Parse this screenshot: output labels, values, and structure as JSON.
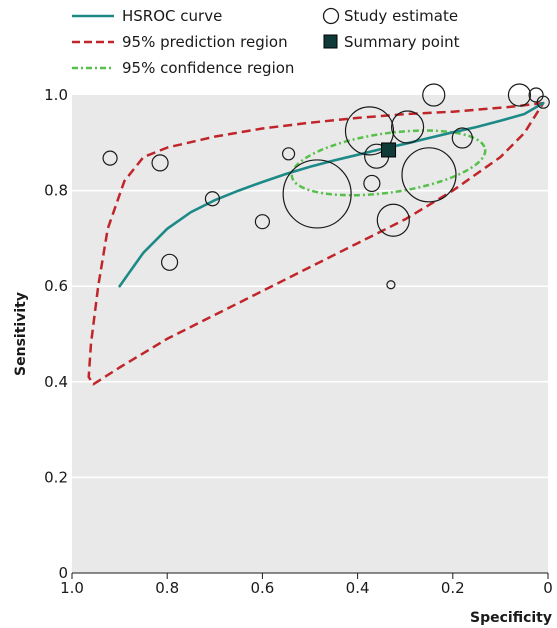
{
  "chart_data": {
    "type": "scatter",
    "xlabel": "Specificity",
    "ylabel": "Sensitivity",
    "xlim": [
      1.0,
      0.0
    ],
    "ylim": [
      0.0,
      1.0
    ],
    "x_reversed": true,
    "x_ticks": [
      {
        "value": 1.0,
        "label": "1.0"
      },
      {
        "value": 0.8,
        "label": "0.8"
      },
      {
        "value": 0.6,
        "label": "0.6"
      },
      {
        "value": 0.4,
        "label": "0.4"
      },
      {
        "value": 0.2,
        "label": "0.2"
      },
      {
        "value": 0.0,
        "label": "0"
      }
    ],
    "y_ticks": [
      {
        "value": 0.0,
        "label": "0"
      },
      {
        "value": 0.2,
        "label": "0.2"
      },
      {
        "value": 0.4,
        "label": "0.4"
      },
      {
        "value": 0.6,
        "label": "0.6"
      },
      {
        "value": 0.8,
        "label": "0.8"
      },
      {
        "value": 1.0,
        "label": "1.0"
      }
    ],
    "grid": "horizontal",
    "legend": {
      "placement": "top",
      "entries": [
        {
          "label": "HSROC curve",
          "symbol": "line"
        },
        {
          "label": "Study estimate",
          "symbol": "circle"
        },
        {
          "label": "95% prediction region",
          "symbol": "dashed"
        },
        {
          "label": "Summary point",
          "symbol": "square"
        },
        {
          "label": "95% confidence region",
          "symbol": "dotdash"
        }
      ]
    },
    "summary_point": {
      "specificity": 0.335,
      "sensitivity": 0.885
    },
    "studies": [
      {
        "specificity": 0.92,
        "sensitivity": 0.868,
        "size": 7
      },
      {
        "specificity": 0.815,
        "sensitivity": 0.858,
        "size": 8
      },
      {
        "specificity": 0.795,
        "sensitivity": 0.65,
        "size": 8
      },
      {
        "specificity": 0.705,
        "sensitivity": 0.783,
        "size": 7
      },
      {
        "specificity": 0.6,
        "sensitivity": 0.735,
        "size": 7
      },
      {
        "specificity": 0.545,
        "sensitivity": 0.877,
        "size": 6
      },
      {
        "specificity": 0.485,
        "sensitivity": 0.793,
        "size": 34
      },
      {
        "specificity": 0.375,
        "sensitivity": 0.925,
        "size": 24
      },
      {
        "specificity": 0.37,
        "sensitivity": 0.815,
        "size": 8
      },
      {
        "specificity": 0.36,
        "sensitivity": 0.872,
        "size": 12
      },
      {
        "specificity": 0.33,
        "sensitivity": 0.603,
        "size": 4
      },
      {
        "specificity": 0.325,
        "sensitivity": 0.738,
        "size": 16
      },
      {
        "specificity": 0.295,
        "sensitivity": 0.933,
        "size": 16
      },
      {
        "specificity": 0.25,
        "sensitivity": 0.833,
        "size": 27
      },
      {
        "specificity": 0.24,
        "sensitivity": 1.0,
        "size": 11
      },
      {
        "specificity": 0.18,
        "sensitivity": 0.91,
        "size": 10
      },
      {
        "specificity": 0.06,
        "sensitivity": 1.0,
        "size": 11
      },
      {
        "specificity": 0.025,
        "sensitivity": 1.0,
        "size": 7
      },
      {
        "specificity": 0.01,
        "sensitivity": 0.985,
        "size": 6
      }
    ],
    "hsroc_curve": [
      [
        0.9,
        0.6
      ],
      [
        0.85,
        0.67
      ],
      [
        0.8,
        0.72
      ],
      [
        0.75,
        0.755
      ],
      [
        0.7,
        0.78
      ],
      [
        0.65,
        0.8
      ],
      [
        0.6,
        0.818
      ],
      [
        0.55,
        0.835
      ],
      [
        0.5,
        0.85
      ],
      [
        0.45,
        0.863
      ],
      [
        0.4,
        0.875
      ],
      [
        0.35,
        0.887
      ],
      [
        0.3,
        0.898
      ],
      [
        0.25,
        0.91
      ],
      [
        0.2,
        0.922
      ],
      [
        0.15,
        0.933
      ],
      [
        0.1,
        0.946
      ],
      [
        0.05,
        0.96
      ],
      [
        0.01,
        0.983
      ]
    ],
    "prediction_region": [
      [
        0.01,
        0.983
      ],
      [
        0.08,
        0.975
      ],
      [
        0.2,
        0.965
      ],
      [
        0.3,
        0.96
      ],
      [
        0.4,
        0.952
      ],
      [
        0.5,
        0.942
      ],
      [
        0.6,
        0.93
      ],
      [
        0.7,
        0.913
      ],
      [
        0.8,
        0.89
      ],
      [
        0.85,
        0.87
      ],
      [
        0.89,
        0.82
      ],
      [
        0.925,
        0.72
      ],
      [
        0.945,
        0.6
      ],
      [
        0.96,
        0.48
      ],
      [
        0.965,
        0.41
      ],
      [
        0.955,
        0.395
      ],
      [
        0.9,
        0.43
      ],
      [
        0.8,
        0.49
      ],
      [
        0.7,
        0.54
      ],
      [
        0.6,
        0.59
      ],
      [
        0.5,
        0.64
      ],
      [
        0.4,
        0.69
      ],
      [
        0.3,
        0.74
      ],
      [
        0.2,
        0.8
      ],
      [
        0.1,
        0.87
      ],
      [
        0.05,
        0.92
      ],
      [
        0.01,
        0.983
      ]
    ],
    "confidence_region": {
      "center": [
        0.335,
        0.858
      ],
      "rx_spec": 0.205,
      "ry_sens": 0.062,
      "tilt_deg": -8
    },
    "colors": {
      "hsroc": "#1e8a88",
      "prediction": "#c0252a",
      "confidence": "#57c04a",
      "summary": "#0f3a38",
      "plot_bg": "#e9e9e9",
      "grid": "#ffffff"
    }
  }
}
